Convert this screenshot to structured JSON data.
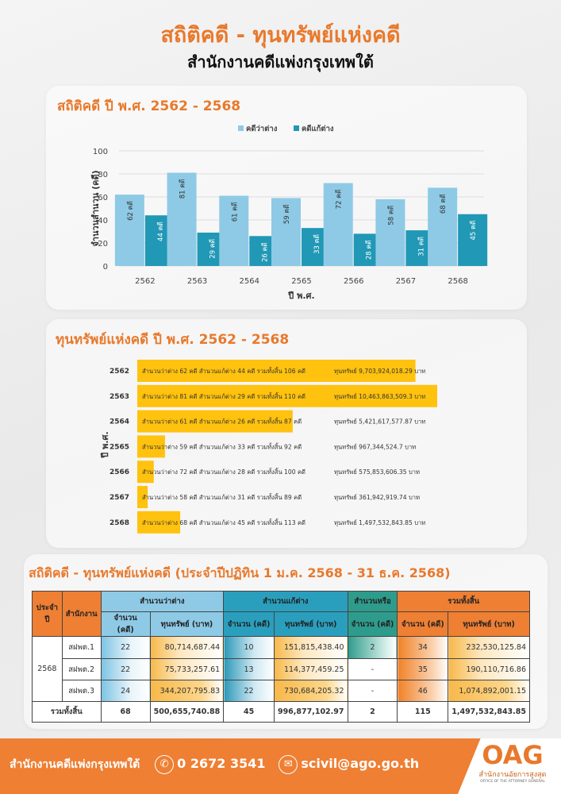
{
  "header": {
    "title": "สถิติคดี - ทุนทรัพย์แห่งคดี",
    "subtitle": "สำนักงานคดีแพ่งกรุงเทพใต้"
  },
  "section1": {
    "title": "สถิติคดี ปี พ.ศ. 2562 - 2568"
  },
  "chart_data": [
    {
      "type": "bar",
      "title": "สถิติคดี ปี พ.ศ. 2562 - 2568",
      "categories": [
        "2562",
        "2563",
        "2564",
        "2565",
        "2566",
        "2567",
        "2568"
      ],
      "series": [
        {
          "name": "คดีว่าต่าง",
          "values": [
            62,
            81,
            61,
            59,
            72,
            58,
            68
          ],
          "color": "#8ecae6"
        },
        {
          "name": "คดีแก้ต่าง",
          "values": [
            44,
            29,
            26,
            33,
            28,
            31,
            45
          ],
          "color": "#2198b5"
        }
      ],
      "value_suffix": " คดี",
      "xlabel": "ปี พ.ศ.",
      "ylabel": "จำนวนสำนวน (คดี)",
      "ylim": [
        0,
        100
      ],
      "yticks": [
        0,
        20,
        40,
        60,
        80,
        100
      ],
      "grid": true,
      "legend": "top"
    },
    {
      "type": "bar",
      "orientation": "horizontal",
      "title": "ทุนทรัพย์แห่งคดี ปี พ.ศ. 2562 - 2568",
      "ylabel": "ปี พ.ศ.",
      "categories": [
        "2562",
        "2563",
        "2564",
        "2565",
        "2566",
        "2567",
        "2568"
      ],
      "values": [
        9703924018.29,
        10463863509.3,
        5421617577.87,
        967344524.7,
        575853606.35,
        361942919.74,
        1497532843.85
      ],
      "color": "#ffc20e",
      "labels": [
        "สำนวนว่าต่าง 62 คดี สำนวนแก้ต่าง 44 คดี รวมทั้งสิ้น 106 คดี",
        "สำนวนว่าต่าง 81 คดี สำนวนแก้ต่าง 29 คดี รวมทั้งสิ้น 110 คดี",
        "สำนวนว่าต่าง 61 คดี สำนวนแก้ต่าง 26 คดี รวมทั้งสิ้น 87 คดี",
        "สำนวนว่าต่าง 59 คดี สำนวนแก้ต่าง 33 คดี รวมทั้งสิ้น 92 คดี",
        "สำนวนว่าต่าง 72 คดี สำนวนแก้ต่าง 28 คดี รวมทั้งสิ้น 100 คดี",
        "สำนวนว่าต่าง 58 คดี สำนวนแก้ต่าง 31 คดี รวมทั้งสิ้น 89 คดี",
        "สำนวนว่าต่าง 68 คดี สำนวนแก้ต่าง 45 คดี รวมทั้งสิ้น 113 คดี"
      ],
      "asset_labels": [
        "ทุนทรัพย์ 9,703,924,018.29 บาท",
        "ทุนทรัพย์ 10,463,863,509.3 บาท",
        "ทุนทรัพย์ 5,421,617,577.87 บาท",
        "ทุนทรัพย์ 967,344,524.7 บาท",
        "ทุนทรัพย์ 575,853,606.35 บาท",
        "ทุนทรัพย์ 361,942,919.74 บาท",
        "ทุนทรัพย์ 1,497,532,843.85 บาท"
      ]
    }
  ],
  "section2": {
    "title": "ทุนทรัพย์แห่งคดี ปี พ.ศ. 2562 - 2568"
  },
  "section3": {
    "title": "สถิติคดี - ทุนทรัพย์แห่งคดี (ประจำปีปฏิทิน 1 ม.ค. 2568 - 31 ธ.ค. 2568)"
  },
  "table": {
    "h_year": "ประจำปี",
    "h_office": "สำนักงาน",
    "h_plaintiff": "สำนวนว่าต่าง",
    "h_defendant": "สำนวนแก้ต่าง",
    "h_consult": "สำนวนหรือ",
    "h_total": "รวมทั้งสิ้น",
    "h_count": "จำนวน (คดี)",
    "h_asset": "ทุนทรัพย์ (บาท)",
    "year": "2568",
    "rows": [
      {
        "office": "สฝพต.1",
        "p_count": "22",
        "p_asset": "80,714,687.44",
        "d_count": "10",
        "d_asset": "151,815,438.40",
        "c_count": "2",
        "t_count": "34",
        "t_asset": "232,530,125.84"
      },
      {
        "office": "สฝพต.2",
        "p_count": "22",
        "p_asset": "75,733,257.61",
        "d_count": "13",
        "d_asset": "114,377,459.25",
        "c_count": "-",
        "t_count": "35",
        "t_asset": "190,110,716.86"
      },
      {
        "office": "สฝพต.3",
        "p_count": "24",
        "p_asset": "344,207,795.83",
        "d_count": "22",
        "d_asset": "730,684,205.32",
        "c_count": "-",
        "t_count": "46",
        "t_asset": "1,074,892,001.15"
      }
    ],
    "total": {
      "label": "รวมทั้งสิ้น",
      "p_count": "68",
      "p_asset": "500,655,740.88",
      "d_count": "45",
      "d_asset": "996,877,102.97",
      "c_count": "2",
      "t_count": "115",
      "t_asset": "1,497,532,843.85"
    }
  },
  "footer": {
    "office": "สำนักงานคดีแพ่งกรุงเทพใต้",
    "phone": "0 2672 3541",
    "email": "scivil@ago.go.th",
    "logo_text": "OAG",
    "logo_th": "สำนักงานอัยการสูงสุด",
    "logo_en": "OFFICE OF THE ATTORNEY GENERAL"
  }
}
